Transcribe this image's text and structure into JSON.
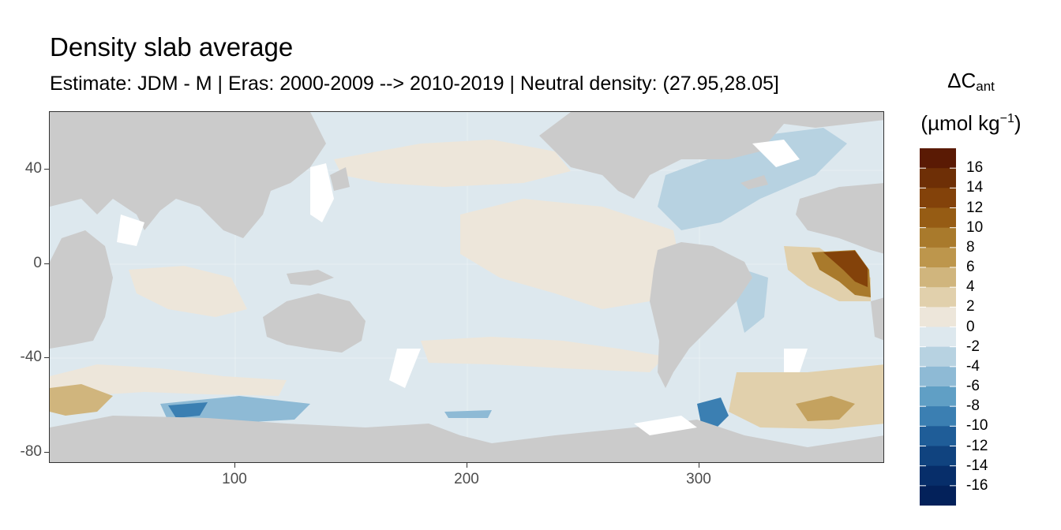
{
  "header": {
    "title": "Density slab average",
    "subtitle": "Estimate: JDM - M | Eras: 2000-2009 --> 2010-2019 | Neutral density: (27.95,28.05]"
  },
  "axes": {
    "y_ticks": [
      "40",
      "0",
      "-40",
      "-80"
    ],
    "x_ticks": [
      "100",
      "200",
      "300"
    ],
    "xlim": [
      20,
      380
    ],
    "ylim": [
      -85,
      65
    ]
  },
  "legend": {
    "title_main": "ΔC",
    "title_sub": "ant",
    "unit_prefix": "(µmol kg",
    "unit_sup": "−1",
    "unit_suffix": ")",
    "labels": [
      "16",
      "14",
      "12",
      "10",
      "8",
      "6",
      "4",
      "2",
      "0",
      "-2",
      "-4",
      "-6",
      "-8",
      "-10",
      "-12",
      "-14",
      "-16"
    ],
    "colors": [
      "#5a1a04",
      "#6e2f06",
      "#83420a",
      "#965c14",
      "#a97a2c",
      "#bd964c",
      "#d0b57d",
      "#e1d0ac",
      "#ede6da",
      "#dde8ee",
      "#b7d2e1",
      "#8ebad5",
      "#609fc5",
      "#3b7fb2",
      "#1f5d98",
      "#10437f",
      "#072e6a",
      "#03215a"
    ]
  },
  "colors": {
    "land": "#cbcbcb",
    "ocean_neutral": "#dde8ee",
    "ocean_warm": "#ede6da",
    "ocean_blue": "#b7d2e1",
    "ocean_deep_blue": "#3b7fb2",
    "hotspot": "#83420a"
  }
}
